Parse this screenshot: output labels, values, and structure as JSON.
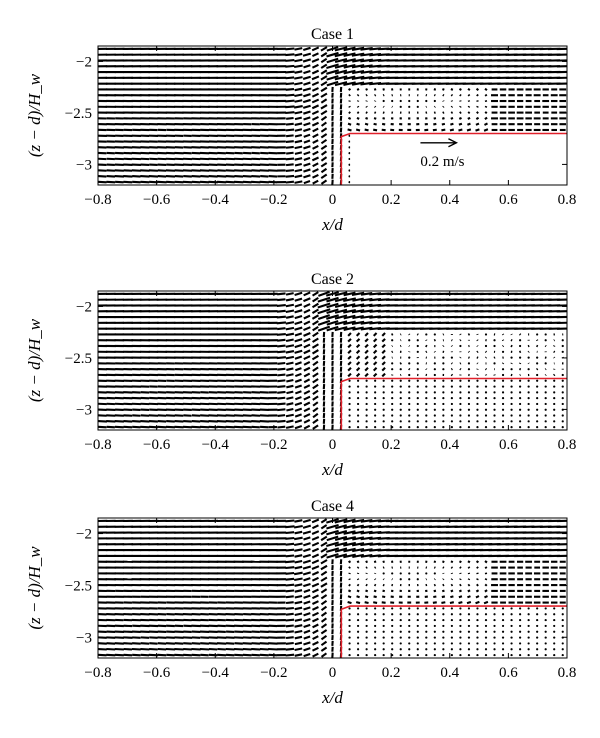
{
  "chart_data": [
    {
      "type": "quiver",
      "title": "Case 1",
      "xlabel": "x/d",
      "ylabel": "(z − d)/H_w",
      "xlim": [
        -0.8,
        0.8
      ],
      "ylim": [
        -3.2,
        -1.85
      ],
      "xticks": [
        "−0.8",
        "−0.6",
        "−0.4",
        "−0.2",
        "0",
        "0.2",
        "0.4",
        "0.6",
        "0.8"
      ],
      "yticks": [
        "−2",
        "−2.5",
        "−3"
      ],
      "xtick_values": [
        -0.8,
        -0.6,
        -0.4,
        -0.2,
        0,
        0.2,
        0.4,
        0.6,
        0.8
      ],
      "ytick_values": [
        -2,
        -2.5,
        -3
      ],
      "reference_vector": {
        "magnitude": 0.2,
        "label": "0.2 m/s",
        "x": 0.3,
        "z": -2.79
      },
      "boundary": {
        "color": "#e0202a",
        "x": [
          0.03,
          0.03,
          0.06,
          0.8
        ],
        "z": [
          -3.2,
          -2.73,
          -2.7,
          -2.7
        ]
      },
      "flow": {
        "recirculation": true,
        "upflow_x": 0.0,
        "stagnant_region": false
      }
    },
    {
      "type": "quiver",
      "title": "Case 2",
      "xlabel": "x/d",
      "ylabel": "(z − d)/H_w",
      "xlim": [
        -0.8,
        0.8
      ],
      "ylim": [
        -3.2,
        -1.85
      ],
      "xticks": [
        "−0.8",
        "−0.6",
        "−0.4",
        "−0.2",
        "0",
        "0.2",
        "0.4",
        "0.6",
        "0.8"
      ],
      "yticks": [
        "−2",
        "−2.5",
        "−3"
      ],
      "xtick_values": [
        -0.8,
        -0.6,
        -0.4,
        -0.2,
        0,
        0.2,
        0.4,
        0.6,
        0.8
      ],
      "ytick_values": [
        -2,
        -2.5,
        -3
      ],
      "boundary": {
        "color": "#e0202a",
        "x": [
          0.03,
          0.03,
          0.06,
          0.8
        ],
        "z": [
          -3.2,
          -2.73,
          -2.7,
          -2.7
        ]
      },
      "flow": {
        "recirculation": false,
        "upflow_x": -0.03,
        "stagnant_region": true
      }
    },
    {
      "type": "quiver",
      "title": "Case 4",
      "xlabel": "x/d",
      "ylabel": "(z − d)/H_w",
      "xlim": [
        -0.8,
        0.8
      ],
      "ylim": [
        -3.2,
        -1.85
      ],
      "xticks": [
        "−0.8",
        "−0.6",
        "−0.4",
        "−0.2",
        "0",
        "0.2",
        "0.4",
        "0.6",
        "0.8"
      ],
      "yticks": [
        "−2",
        "−2.5",
        "−3"
      ],
      "xtick_values": [
        -0.8,
        -0.6,
        -0.4,
        -0.2,
        0,
        0.2,
        0.4,
        0.6,
        0.8
      ],
      "ytick_values": [
        -2,
        -2.5,
        -3
      ],
      "boundary": {
        "color": "#e0202a",
        "x": [
          0.03,
          0.03,
          0.06,
          0.8
        ],
        "z": [
          -3.2,
          -2.73,
          -2.7,
          -2.7
        ]
      },
      "flow": {
        "recirculation": true,
        "upflow_x": 0.0,
        "stagnant_region": true
      }
    }
  ]
}
